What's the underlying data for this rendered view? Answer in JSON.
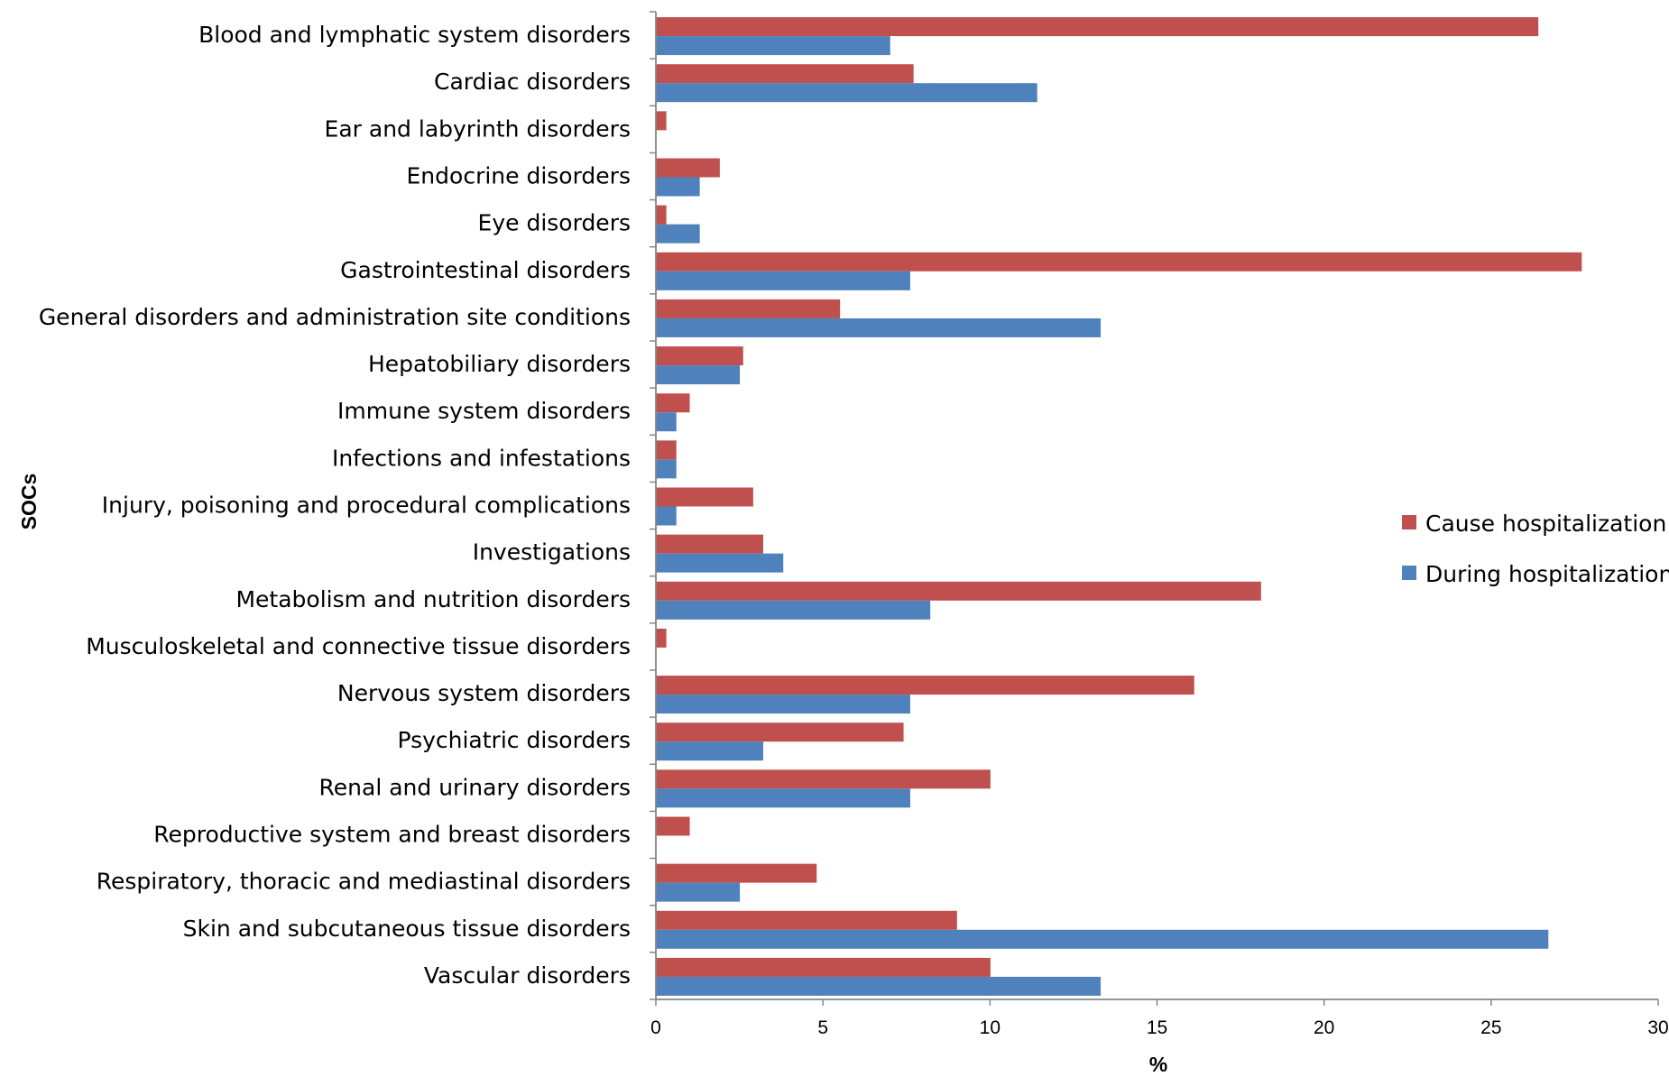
{
  "chart_data": {
    "type": "bar",
    "orientation": "horizontal",
    "title": "",
    "xlabel": "%",
    "ylabel": "SOCs",
    "xlim": [
      0,
      30
    ],
    "xticks": [
      0,
      5,
      10,
      15,
      20,
      25,
      30
    ],
    "grid": false,
    "legend_position": "right",
    "categories": [
      "Blood and lymphatic system disorders",
      "Cardiac disorders",
      "Ear and labyrinth disorders",
      "Endocrine disorders",
      "Eye disorders",
      "Gastrointestinal disorders",
      "General disorders and administration site conditions",
      "Hepatobiliary disorders",
      "Immune system disorders",
      "Infections and infestations",
      "Injury, poisoning and procedural complications",
      "Investigations",
      "Metabolism and nutrition disorders",
      "Musculoskeletal and connective tissue disorders",
      "Nervous system disorders",
      "Psychiatric disorders",
      "Renal and urinary disorders",
      "Reproductive system and breast disorders",
      "Respiratory, thoracic and mediastinal disorders",
      "Skin and subcutaneous tissue disorders",
      "Vascular disorders"
    ],
    "series": [
      {
        "name": "Cause hospitalization",
        "color": "#c0504d",
        "values": [
          26.4,
          7.7,
          0.3,
          1.9,
          0.3,
          27.7,
          5.5,
          2.6,
          1.0,
          0.6,
          2.9,
          3.2,
          18.1,
          0.3,
          16.1,
          7.4,
          10.0,
          1.0,
          4.8,
          9.0,
          10.0
        ]
      },
      {
        "name": "During hospitalization",
        "color": "#4f81bd",
        "values": [
          7.0,
          11.4,
          0.0,
          1.3,
          1.3,
          7.6,
          13.3,
          2.5,
          0.6,
          0.6,
          0.6,
          3.8,
          8.2,
          0.0,
          7.6,
          3.2,
          7.6,
          0.0,
          2.5,
          26.7,
          13.3
        ]
      }
    ],
    "axis_color": "#868686"
  }
}
